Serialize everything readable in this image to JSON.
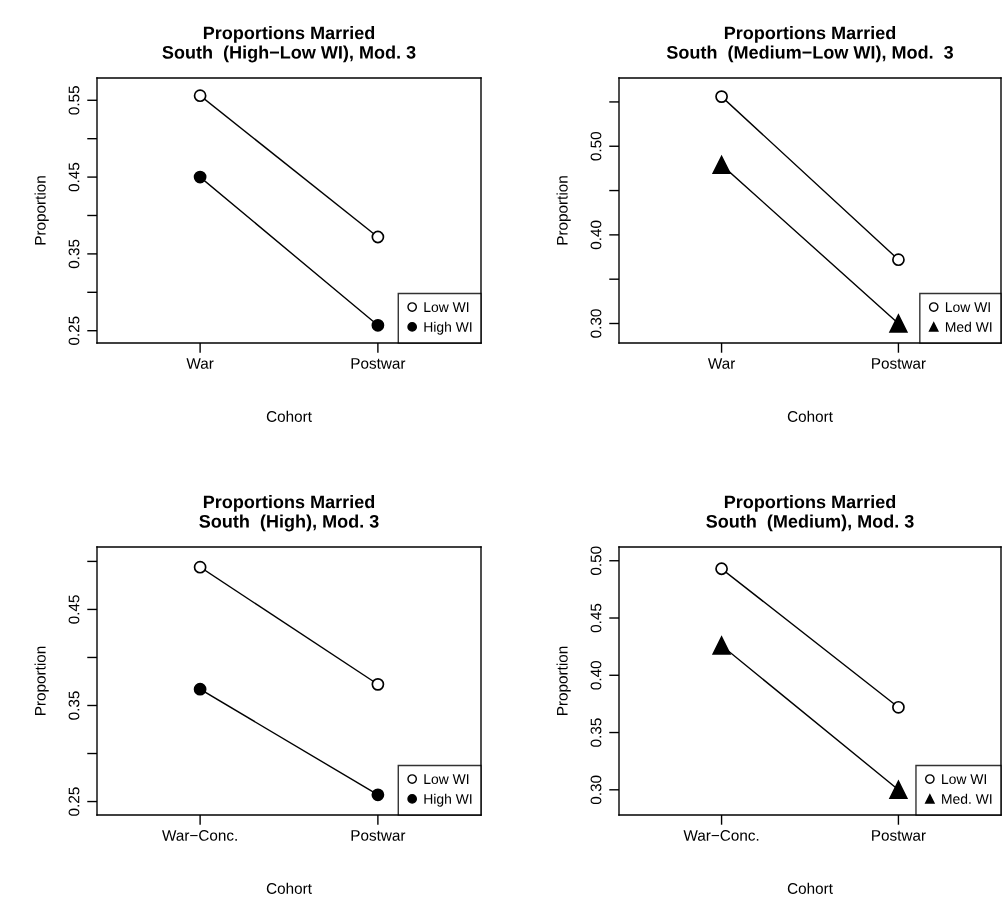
{
  "chart_data": [
    {
      "type": "line",
      "title": "Proportions Married\nSouth  (High−Low WI), Mod. 3",
      "xlabel": "Cohort",
      "ylabel": "Proportion",
      "categories": [
        "War",
        "Postwar"
      ],
      "ylim": [
        0.234,
        0.579
      ],
      "yticks": [
        0.25,
        {
          "value": 0.3,
          "label": null
        },
        0.35,
        {
          "value": 0.4,
          "label": null
        },
        0.45,
        {
          "value": 0.5,
          "label": null
        },
        0.55
      ],
      "legend": "bottom right",
      "grid": false,
      "series": [
        {
          "name": "Low WI",
          "color": "#000000",
          "marker": "circle",
          "values": [
            0.556,
            0.372
          ]
        },
        {
          "name": "High WI",
          "color": "#000000",
          "marker": "circle",
          "values": [
            0.45,
            0.257
          ]
        }
      ]
    },
    {
      "type": "line",
      "title": "Proportions Married\nSouth  (Medium−Low WI), Mod.  3",
      "xlabel": "Cohort",
      "ylabel": "Proportion",
      "categories": [
        "War",
        "Postwar"
      ],
      "ylim": [
        0.278,
        0.577
      ],
      "yticks": [
        {
          "value": 0.3,
          "label": "0.30"
        },
        {
          "value": 0.35,
          "label": null
        },
        {
          "value": 0.4,
          "label": "0.40"
        },
        {
          "value": 0.45,
          "label": null
        },
        {
          "value": 0.5,
          "label": "0.50"
        },
        {
          "value": 0.55,
          "label": null
        }
      ],
      "legend": "bottom right",
      "grid": false,
      "series": [
        {
          "name": "Low WI",
          "color": "#000000",
          "marker": "circle",
          "values": [
            0.556,
            0.372
          ]
        },
        {
          "name": "Med WI",
          "color": "#000000",
          "marker": "triangle",
          "values": [
            0.479,
            0.3
          ]
        }
      ]
    },
    {
      "type": "line",
      "title": "Proportions Married\nSouth  (High), Mod. 3",
      "xlabel": "Cohort",
      "ylabel": "Proportion",
      "categories": [
        "War−Conc.",
        "Postwar"
      ],
      "ylim": [
        0.236,
        0.515
      ],
      "yticks": [
        0.25,
        {
          "value": 0.3,
          "label": null
        },
        0.35,
        {
          "value": 0.4,
          "label": null
        },
        0.45,
        {
          "value": 0.5,
          "label": null
        }
      ],
      "legend": "bottom right",
      "grid": false,
      "series": [
        {
          "name": "Low WI",
          "color": "#000000",
          "marker": "circle",
          "values": [
            0.494,
            0.372
          ]
        },
        {
          "name": "High WI",
          "color": "#000000",
          "marker": "circle",
          "values": [
            0.367,
            0.257
          ]
        }
      ]
    },
    {
      "type": "line",
      "title": "Proportions Married\nSouth  (Medium), Mod. 3",
      "xlabel": "Cohort",
      "ylabel": "Proportion",
      "categories": [
        "War−Conc.",
        "Postwar"
      ],
      "ylim": [
        0.278,
        0.512
      ],
      "yticks": [
        {
          "value": 0.3,
          "label": "0.30"
        },
        0.35,
        {
          "value": 0.4,
          "label": "0.40"
        },
        0.45,
        {
          "value": 0.5,
          "label": "0.50"
        }
      ],
      "legend": "bottom right",
      "grid": false,
      "series": [
        {
          "name": "Low WI",
          "color": "#000000",
          "marker": "circle",
          "values": [
            0.493,
            0.372
          ]
        },
        {
          "name": "Med. WI",
          "color": "#000000",
          "marker": "triangle",
          "values": [
            0.426,
            0.3
          ]
        }
      ]
    }
  ]
}
